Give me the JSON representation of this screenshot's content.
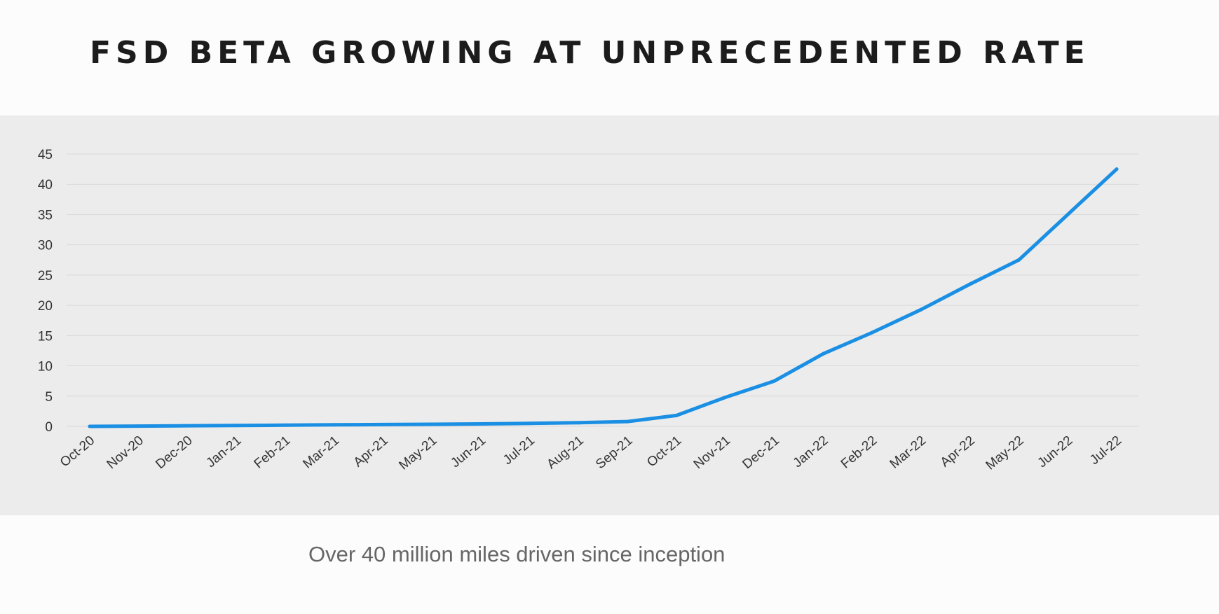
{
  "slide": {
    "title": "FSD BETA GROWING AT UNPRECEDENTED RATE",
    "caption": "Over 40 million miles driven since inception"
  },
  "chart_data": {
    "type": "line",
    "title": "FSD BETA GROWING AT UNPRECEDENTED RATE",
    "xlabel": "",
    "ylabel": "",
    "ylim": [
      0,
      45
    ],
    "yticks": [
      0,
      5,
      10,
      15,
      20,
      25,
      30,
      35,
      40,
      45
    ],
    "grid": true,
    "legend": "none",
    "categories": [
      "Oct-20",
      "Nov-20",
      "Dec-20",
      "Jan-21",
      "Feb-21",
      "Mar-21",
      "Apr-21",
      "May-21",
      "Jun-21",
      "Jul-21",
      "Aug-21",
      "Sep-21",
      "Oct-21",
      "Nov-21",
      "Dec-21",
      "Jan-22",
      "Feb-22",
      "Mar-22",
      "Apr-22",
      "May-22",
      "Jun-22",
      "Jul-22"
    ],
    "series": [
      {
        "values": [
          0.0,
          0.05,
          0.1,
          0.15,
          0.2,
          0.25,
          0.3,
          0.35,
          0.4,
          0.5,
          0.6,
          0.8,
          1.8,
          4.8,
          7.5,
          12.0,
          15.5,
          19.3,
          23.5,
          27.5,
          35.0,
          42.5
        ],
        "color": "#1a8fe3"
      }
    ],
    "colors": {
      "line": "#1a8fe3",
      "grid": "#d9d9d9",
      "panel": "#ececec"
    }
  }
}
